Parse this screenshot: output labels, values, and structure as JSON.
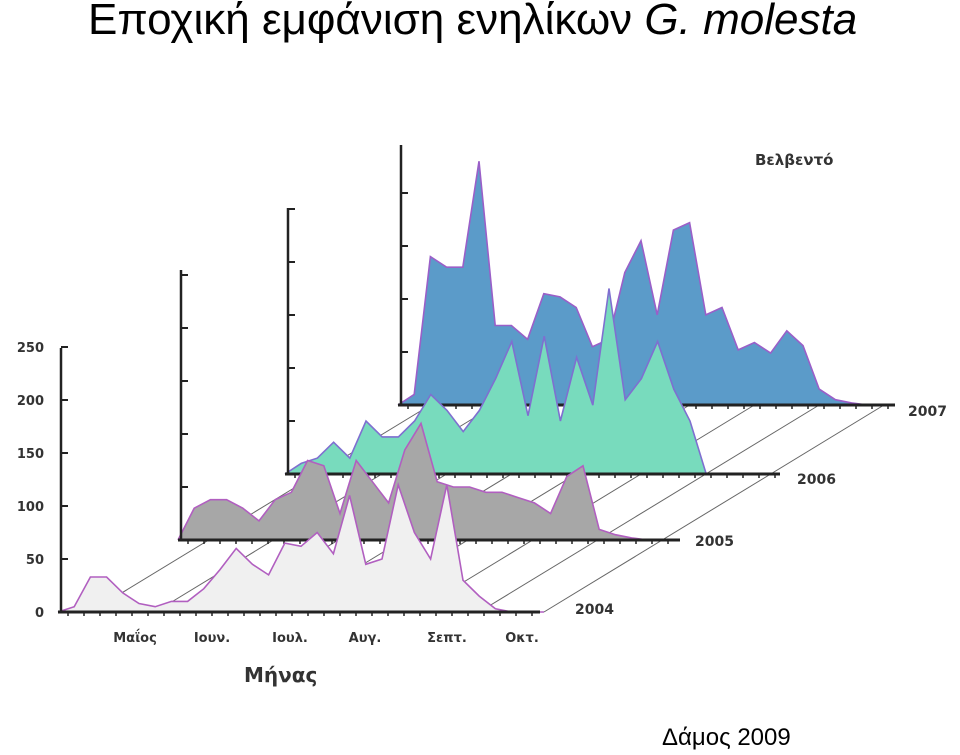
{
  "title": {
    "main": "Εποχική εμφάνιση ενηλίκων",
    "species": "G. molesta"
  },
  "credit": "Δάμος 2009",
  "chart_data": {
    "type": "area",
    "chart_style": "3d-stacked-depth",
    "location": "Βελβεντό",
    "xlabel": "Μήνας",
    "x_tick_labels": [
      "Μαΐος",
      "Ιουν.",
      "Ιουλ.",
      "Αυγ.",
      "Σεπτ.",
      "Οκτ."
    ],
    "y_tick_labels": [
      "0",
      "50",
      "100",
      "150",
      "200",
      "250"
    ],
    "ylim": [
      0,
      250
    ],
    "samples_per_series": 31,
    "series": [
      {
        "name": "2004",
        "color": "#f0f0f0",
        "stroke": "#b15fc0",
        "values": [
          0,
          5,
          33,
          33,
          18,
          8,
          5,
          10,
          10,
          22,
          40,
          60,
          45,
          35,
          65,
          62,
          75,
          55,
          110,
          45,
          50,
          120,
          75,
          50,
          120,
          30,
          15,
          3,
          0,
          0,
          0
        ]
      },
      {
        "name": "2005",
        "color": "#a7a7a7",
        "stroke": "#b15fc0",
        "values": [
          0,
          30,
          38,
          38,
          30,
          18,
          38,
          45,
          75,
          70,
          25,
          75,
          55,
          35,
          85,
          110,
          55,
          50,
          50,
          45,
          45,
          40,
          35,
          25,
          60,
          70,
          10,
          5,
          2,
          0,
          0
        ]
      },
      {
        "name": "2006",
        "color": "#78dbbd",
        "stroke": "#7f6fd0",
        "values": [
          0,
          10,
          15,
          30,
          15,
          50,
          35,
          35,
          50,
          75,
          60,
          40,
          60,
          90,
          125,
          55,
          130,
          50,
          110,
          65,
          175,
          70,
          90,
          125,
          80,
          50,
          0,
          0,
          0,
          0,
          0
        ]
      },
      {
        "name": "2007",
        "color": "#5b9bc9",
        "stroke": "#9a5fc8",
        "values": [
          0,
          10,
          140,
          130,
          130,
          230,
          75,
          75,
          62,
          105,
          102,
          92,
          55,
          62,
          125,
          155,
          85,
          165,
          172,
          85,
          92,
          52,
          59,
          49,
          70,
          56,
          15,
          5,
          2,
          0,
          0
        ]
      }
    ]
  }
}
